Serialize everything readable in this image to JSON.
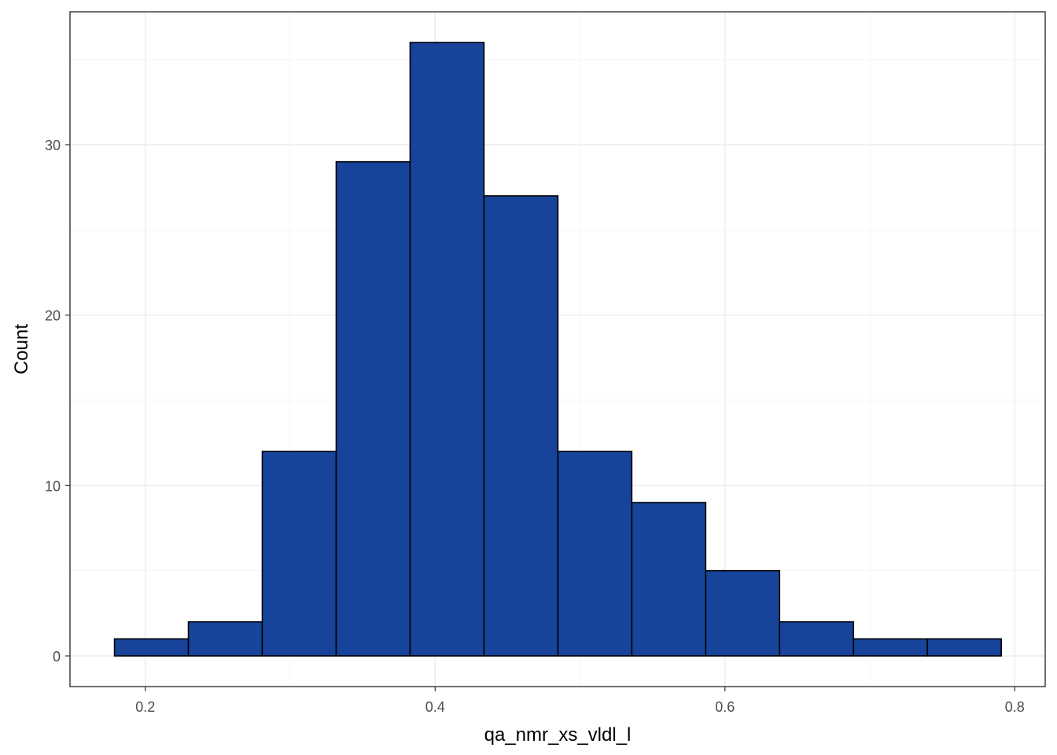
{
  "chart_data": {
    "type": "bar",
    "subtype": "histogram",
    "title": "",
    "xlabel": "qa_nmr_xs_vldl_l",
    "ylabel": "Count",
    "bin_edges": [
      0.1787,
      0.2297,
      0.2807,
      0.3317,
      0.3827,
      0.4337,
      0.4847,
      0.5357,
      0.5867,
      0.6377,
      0.6887,
      0.7397,
      0.7907
    ],
    "counts": [
      1,
      2,
      12,
      29,
      36,
      27,
      12,
      9,
      5,
      2,
      1,
      1
    ],
    "xlim": [
      0.148,
      0.821
    ],
    "ylim": [
      -1.8,
      37.8
    ],
    "xticks": [
      0.2,
      0.4,
      0.6,
      0.8
    ],
    "xtick_labels": [
      "0.2",
      "0.4",
      "0.6",
      "0.8"
    ],
    "yticks": [
      0,
      10,
      20,
      30
    ],
    "ytick_labels": [
      "0",
      "10",
      "20",
      "30"
    ],
    "grid": true,
    "legend": "none",
    "colors": {
      "bar_fill": "#17449a",
      "bar_outline": "#000000",
      "grid": "#ebebeb",
      "panel_border": "#333333",
      "background": "#ffffff"
    }
  }
}
